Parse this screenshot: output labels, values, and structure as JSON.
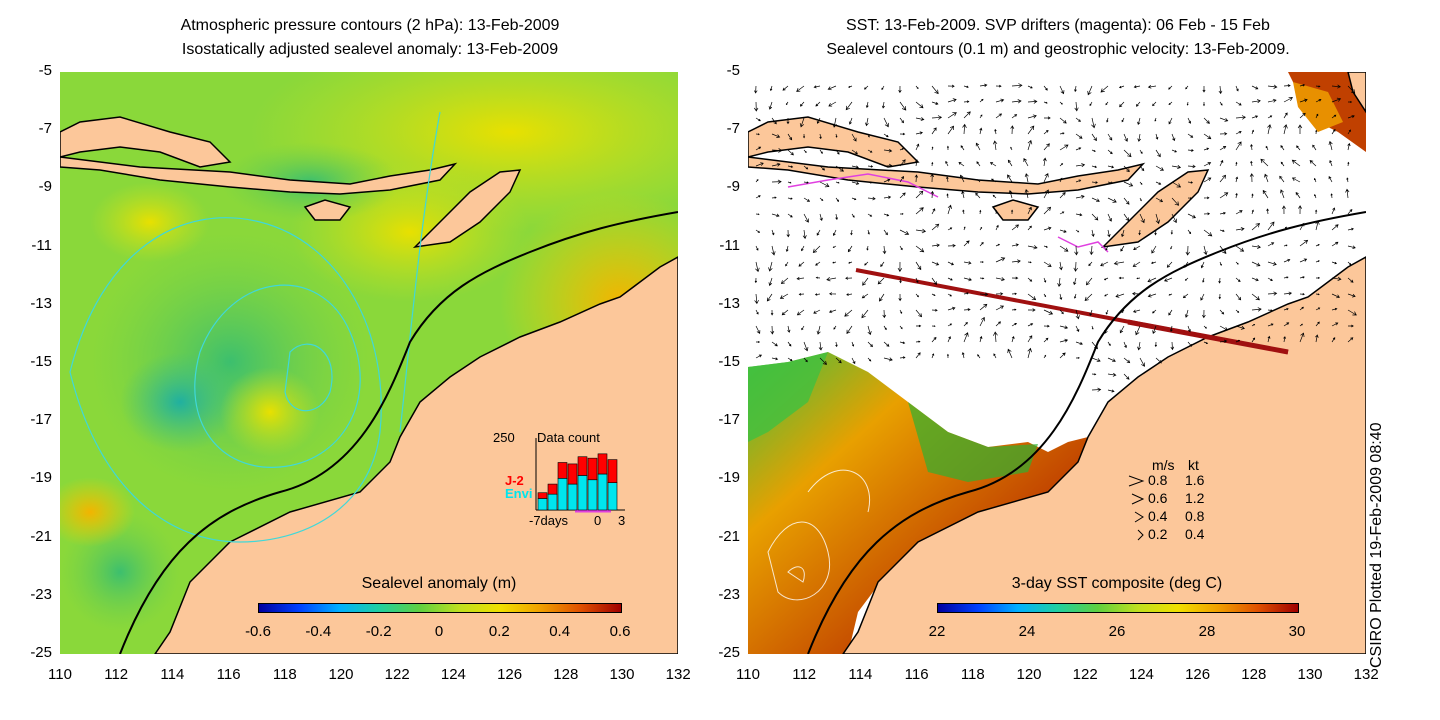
{
  "left_panel": {
    "title_line1": "Atmospheric pressure contours (2 hPa): 13-Feb-2009",
    "title_line2": "Isostatically adjusted sealevel anomaly: 13-Feb-2009",
    "colorbar_title": "Sealevel anomaly (m)",
    "colorbar_ticks": [
      "-0.6",
      "-0.4",
      "-0.2",
      "0",
      "0.2",
      "0.4",
      "0.6"
    ],
    "inset": {
      "title": "Data count",
      "max_label": "250",
      "series": [
        {
          "name": "J-2",
          "color": "#ff0000"
        },
        {
          "name": "Envi",
          "color": "#00e5ee"
        }
      ],
      "x_left_label": "-7days",
      "x_zero_label": "0",
      "x_right_label": "3",
      "bars": [
        {
          "envi": 40,
          "j2": 20
        },
        {
          "envi": 55,
          "j2": 35
        },
        {
          "envi": 110,
          "j2": 55
        },
        {
          "envi": 90,
          "j2": 70
        },
        {
          "envi": 120,
          "j2": 65
        },
        {
          "envi": 105,
          "j2": 75
        },
        {
          "envi": 125,
          "j2": 70
        },
        {
          "envi": 95,
          "j2": 80
        }
      ]
    }
  },
  "right_panel": {
    "title_line1": "SST: 13-Feb-2009. SVP drifters (magenta): 06 Feb - 15 Feb",
    "title_line2": "Sealevel contours (0.1 m) and geostrophic velocity: 13-Feb-2009.",
    "colorbar_title": "3-day SST composite (deg C)",
    "colorbar_ticks": [
      "22",
      "24",
      "26",
      "28",
      "30"
    ],
    "legend": {
      "header_ms": "m/s",
      "header_kt": "kt",
      "rows": [
        {
          "ms": "0.8",
          "kt": "1.6"
        },
        {
          "ms": "0.6",
          "kt": "1.2"
        },
        {
          "ms": "0.4",
          "kt": "0.8"
        },
        {
          "ms": "0.2",
          "kt": "0.4"
        }
      ]
    }
  },
  "y_ticks": [
    "-5",
    "-7",
    "-9",
    "-11",
    "-13",
    "-15",
    "-17",
    "-19",
    "-21",
    "-23",
    "-25"
  ],
  "x_ticks": [
    "110",
    "112",
    "114",
    "116",
    "118",
    "120",
    "122",
    "124",
    "126",
    "128",
    "130",
    "132"
  ],
  "credit": "CSIRO Plotted 19-Feb-2009 08:40",
  "colors": {
    "land": "#fcc79a",
    "coast": "#000000",
    "pressure_contour": "#40d8d8",
    "drifter": "#e040e0"
  }
}
